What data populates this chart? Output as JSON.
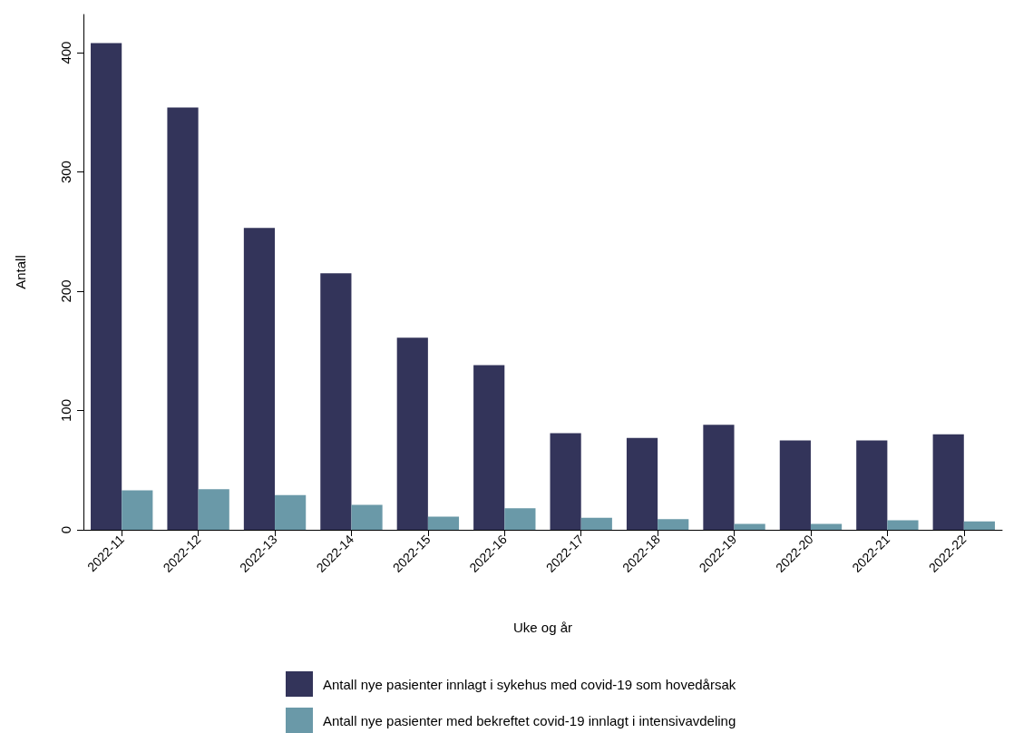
{
  "chart_data": {
    "type": "bar",
    "xlabel": "Uke og år",
    "ylabel": "Antall",
    "categories": [
      "2022-11",
      "2022-12",
      "2022-13",
      "2022-14",
      "2022-15",
      "2022-16",
      "2022-17",
      "2022-18",
      "2022-19",
      "2022-20",
      "2022-21",
      "2022-22"
    ],
    "series": [
      {
        "name": "Antall nye pasienter innlagt i sykehus med covid-19 som hovedårsak",
        "color": "#33345a",
        "values": [
          408,
          354,
          253,
          215,
          161,
          138,
          81,
          77,
          88,
          75,
          75,
          80
        ]
      },
      {
        "name": "Antall nye pasienter med bekreftet covid-19 innlagt i intensivavdeling",
        "color": "#6a99a8",
        "values": [
          33,
          34,
          29,
          21,
          11,
          18,
          10,
          9,
          5,
          5,
          8,
          7
        ]
      }
    ],
    "ylim": [
      0,
      432
    ],
    "yticks": [
      0,
      100,
      200,
      300,
      400
    ],
    "grid": false,
    "legend": "bottom"
  }
}
